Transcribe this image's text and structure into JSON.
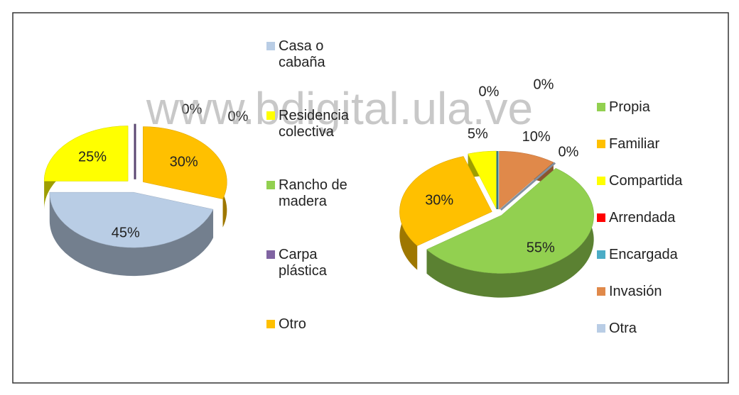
{
  "watermark": "www.bdigital.ula.ve",
  "chart_data": [
    {
      "type": "pie",
      "categories": [
        "Casa o cabaña",
        "Residencia colectiva",
        "Rancho de madera",
        "Carpa plástica",
        "Otro"
      ],
      "values": [
        45,
        25,
        0,
        0,
        30
      ],
      "value_labels": [
        "45%",
        "25%",
        "0%",
        "0%",
        "30%"
      ],
      "colors": [
        "#b9cde5",
        "#ffff00",
        "#92d050",
        "#8064a2",
        "#ffc000"
      ]
    },
    {
      "type": "pie",
      "categories": [
        "Propia",
        "Familiar",
        "Compartida",
        "Arrendada",
        "Encargada",
        "Invasión",
        "Otra"
      ],
      "values": [
        55,
        30,
        5,
        0,
        0,
        10,
        0
      ],
      "value_labels": [
        "55%",
        "30%",
        "5%",
        "0%",
        "0%",
        "10%",
        "0%"
      ],
      "colors": [
        "#92d050",
        "#ffc000",
        "#ffff00",
        "#ff0000",
        "#4bacc6",
        "#e0894a",
        "#b9cde5"
      ]
    }
  ]
}
